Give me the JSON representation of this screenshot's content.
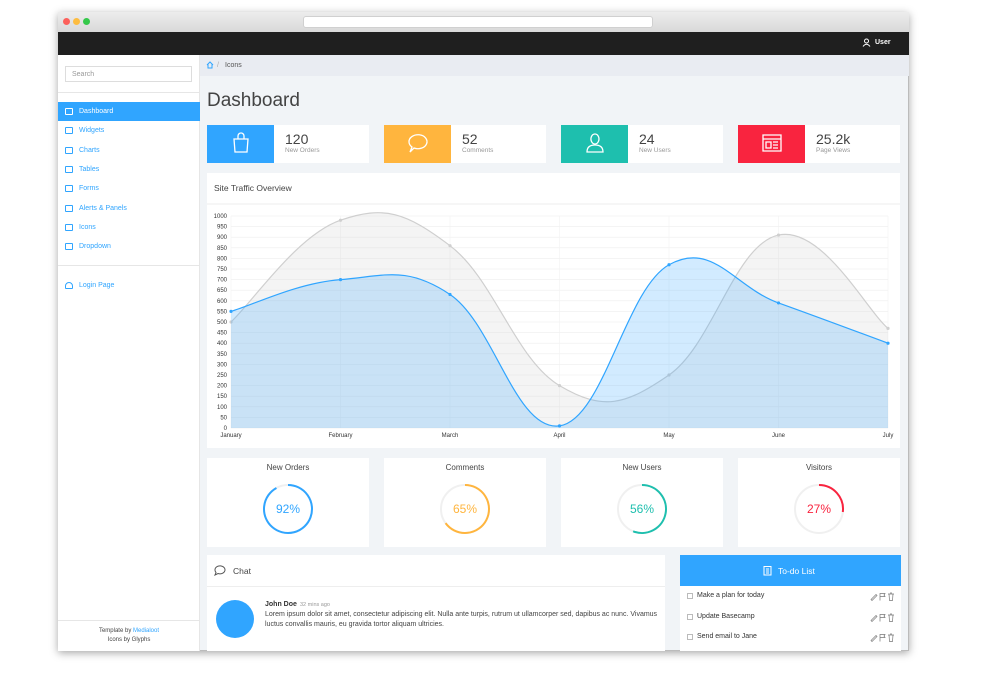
{
  "navbar": {
    "user": "User"
  },
  "sidebar": {
    "search_placeholder": "Search",
    "menu": [
      "Dashboard",
      "Widgets",
      "Charts",
      "Tables",
      "Forms",
      "Alerts & Panels",
      "Icons",
      "Dropdown"
    ],
    "active": "Dashboard",
    "extra": [
      "Login Page"
    ]
  },
  "footer": {
    "template_prefix": "Template by",
    "template_link": "Medialoot",
    "icons": "Icons by Glyphs"
  },
  "breadcrumb": {
    "current": "Icons"
  },
  "page_title": "Dashboard",
  "stats": [
    {
      "value": "120",
      "label": "New Orders",
      "color": "#30a5ff"
    },
    {
      "value": "52",
      "label": "Comments",
      "color": "#ffb53e"
    },
    {
      "value": "24",
      "label": "New Users",
      "color": "#1ebfae"
    },
    {
      "value": "25.2k",
      "label": "Page Views",
      "color": "#f9243f"
    }
  ],
  "chart_data": {
    "type": "line",
    "title": "Site Traffic Overview",
    "categories": [
      "January",
      "February",
      "March",
      "April",
      "May",
      "June",
      "July"
    ],
    "series": [
      {
        "color": "#cfcfcf",
        "values": [
          500,
          980,
          860,
          200,
          250,
          910,
          470
        ]
      },
      {
        "color": "#30a5ff",
        "values": [
          550,
          700,
          630,
          10,
          770,
          590,
          400
        ]
      }
    ],
    "ylim": [
      0,
      1000
    ],
    "yticks": [
      0,
      50,
      100,
      150,
      200,
      250,
      300,
      350,
      400,
      450,
      500,
      550,
      600,
      650,
      700,
      750,
      800,
      850,
      900,
      950,
      1000
    ],
    "grid": true,
    "area": true
  },
  "progress": {
    "items": [
      {
        "title": "New Orders",
        "value": 92,
        "label": "92%",
        "color": "#30a5ff"
      },
      {
        "title": "Comments",
        "value": 65,
        "label": "65%",
        "color": "#ffb53e"
      },
      {
        "title": "New Users",
        "value": 56,
        "label": "56%",
        "color": "#1ebfae"
      },
      {
        "title": "Visitors",
        "value": 27,
        "label": "27%",
        "color": "#f9243f"
      }
    ]
  },
  "chat": {
    "title": "Chat",
    "messages": [
      {
        "name": "John Doe",
        "time": "32 mins ago",
        "text": "Lorem ipsum dolor sit amet, consectetur adipiscing elit. Nulla ante turpis, rutrum ut ullamcorper sed, dapibus ac nunc. Vivamus luctus convallis mauris, eu gravida tortor aliquam ultricies."
      }
    ]
  },
  "todo": {
    "title": "To-do List",
    "items": [
      "Make a plan for today",
      "Update Basecamp",
      "Send email to Jane"
    ]
  }
}
